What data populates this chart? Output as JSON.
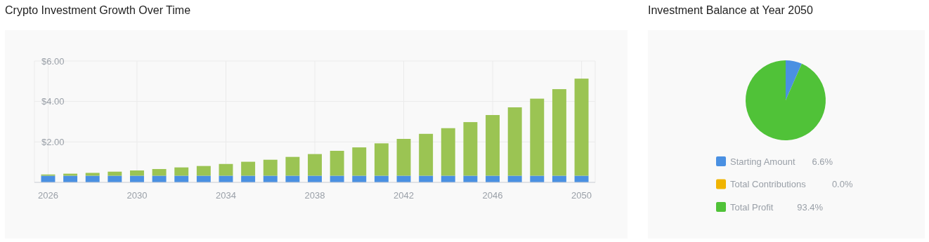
{
  "chart_data": [
    {
      "type": "bar",
      "title": "Crypto Investment Growth Over Time",
      "stacked": true,
      "categories": [
        "2026",
        null,
        null,
        null,
        "2030",
        null,
        null,
        null,
        "2034",
        null,
        null,
        null,
        "2038",
        null,
        null,
        null,
        "2042",
        null,
        null,
        null,
        "2046",
        null,
        null,
        null,
        "2050"
      ],
      "series": [
        {
          "color": "#4a90e2",
          "values": [
            0.33,
            0.33,
            0.33,
            0.33,
            0.33,
            0.33,
            0.33,
            0.33,
            0.33,
            0.33,
            0.33,
            0.33,
            0.33,
            0.33,
            0.33,
            0.33,
            0.33,
            0.33,
            0.33,
            0.33,
            0.33,
            0.33,
            0.33,
            0.33,
            0.33
          ]
        },
        {
          "color": "#9bc453",
          "values": [
            0.06,
            0.1,
            0.14,
            0.2,
            0.26,
            0.33,
            0.41,
            0.48,
            0.58,
            0.69,
            0.79,
            0.93,
            1.07,
            1.23,
            1.4,
            1.6,
            1.82,
            2.07,
            2.35,
            2.65,
            3.0,
            3.38,
            3.81,
            4.28,
            4.8
          ]
        }
      ],
      "ylim": [
        0,
        6
      ],
      "yticks": [
        {
          "value": 2,
          "label": "$2.00"
        },
        {
          "value": 4,
          "label": "$4.00"
        },
        {
          "value": 6,
          "label": "$6.00"
        }
      ],
      "grid": true
    },
    {
      "type": "pie",
      "title": "Investment Balance at Year 2050",
      "categories": [
        "Starting Amount",
        "Total Contributions",
        "Total Profit"
      ],
      "values": [
        6.6,
        0.0,
        93.4
      ],
      "colors": [
        "#4a90e2",
        "#f0b400",
        "#50c238"
      ],
      "value_labels": [
        "6.6%",
        "0.0%",
        "93.4%"
      ],
      "legend": "bottom"
    }
  ]
}
